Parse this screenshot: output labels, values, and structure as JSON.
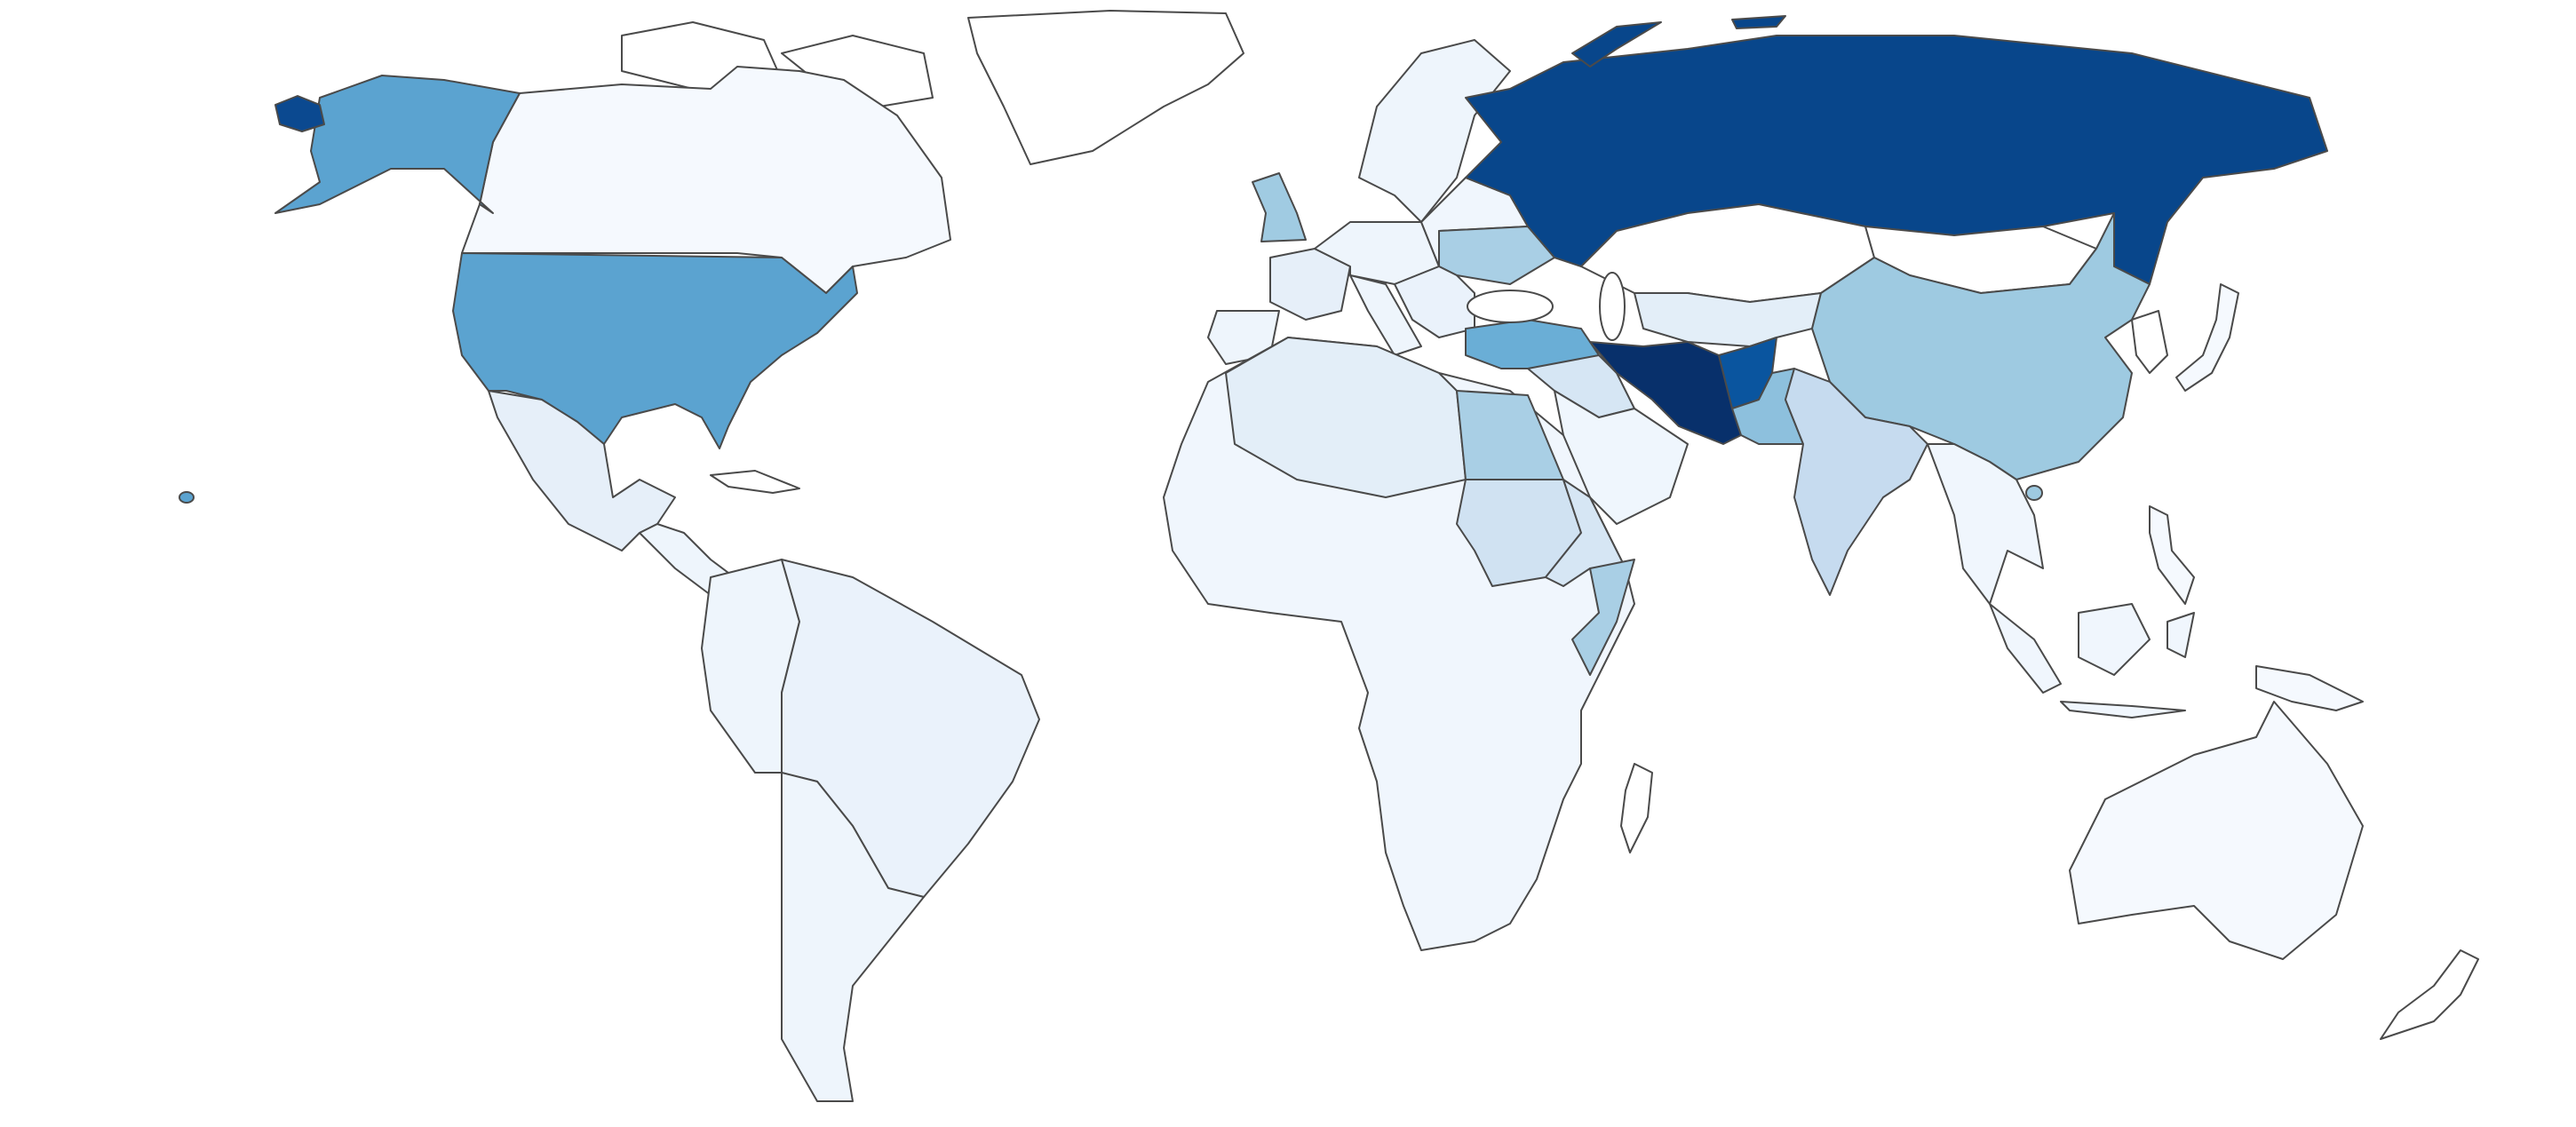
{
  "map": {
    "type": "choropleth",
    "projection": "miller",
    "palette": "Blues",
    "no_data_color": "#ffffff",
    "border_color": "#4a4a4a",
    "regions": {
      "greenland": "#ffffff",
      "arctic-islands": "#ffffff",
      "canada": "#f5f9fe",
      "alaska": "#5ba3d0",
      "alaska-west": "#0b4990",
      "usa": "#5ba3d0",
      "hawaii": "#5ba3d0",
      "mexico": "#e6eff9",
      "central-america": "#eef5fc",
      "cuba": "#ffffff",
      "south-america-west": "#eef5fc",
      "brazil": "#eaf2fb",
      "southern-cone": "#eef5fc",
      "uk": "#a0cbe2",
      "scandinavia": "#eef5fc",
      "france": "#e6eff9",
      "iberia": "#eef5fc",
      "central-europe": "#eef5fc",
      "eastern-europe": "#f0f6fd",
      "ukraine": "#a9cfe5",
      "italy": "#eef5fc",
      "balkans": "#eaf2fb",
      "russia": "#08468b",
      "russia-islands": "#08468b",
      "kazakhstan": "#ffffff",
      "mongolia": "#ffffff",
      "central-asia": "#e3eef8",
      "turkey": "#6aaed6",
      "iran": "#08306b",
      "afghanistan": "#0a559f",
      "pakistan": "#8dc0dd",
      "india": "#c6dbef",
      "china": "#9ecae1",
      "hainan": "#9ecae1",
      "southeast-asia": "#f0f6fd",
      "japan": "#f5f9fe",
      "korea": "#ffffff",
      "saudi-arabia": "#eff6fd",
      "iraq-syria": "#d6e6f4",
      "africa": "#f0f6fd",
      "north-africa": "#e3eef8",
      "egypt": "#a9cfe5",
      "sudan": "#d0e2f2",
      "horn-of-africa": "#d6e6f4",
      "somalia": "#a9cfe5",
      "madagascar": "#ffffff",
      "indonesia": "#f0f6fd",
      "philippines": "#f5f9fe",
      "new-guinea": "#f5f9fe",
      "australia": "#f5f9fe",
      "new-zealand": "#ffffff"
    }
  }
}
